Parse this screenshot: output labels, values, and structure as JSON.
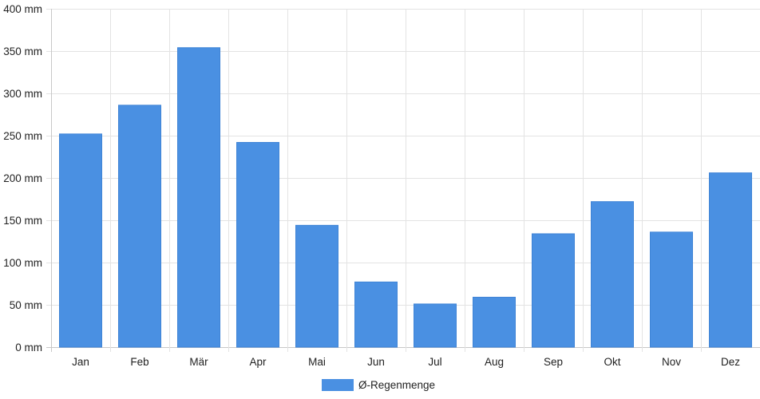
{
  "chart_data": {
    "type": "bar",
    "categories": [
      "Jan",
      "Feb",
      "Mär",
      "Apr",
      "Mai",
      "Jun",
      "Jul",
      "Aug",
      "Sep",
      "Okt",
      "Nov",
      "Dez"
    ],
    "series": [
      {
        "name": "Ø-Regenmenge",
        "color": "#4a90e2",
        "values": [
          252,
          286,
          354,
          242,
          144,
          77,
          51,
          59,
          134,
          172,
          136,
          206
        ]
      }
    ],
    "y_unit": "mm",
    "y_ticks": [
      "0 mm",
      "50 mm",
      "100 mm",
      "150 mm",
      "200 mm",
      "250 mm",
      "300 mm",
      "350 mm",
      "400 mm"
    ],
    "ylim": [
      0,
      400
    ],
    "grid": true,
    "legend_position": "bottom-center",
    "title": "",
    "xlabel": "",
    "ylabel": ""
  }
}
